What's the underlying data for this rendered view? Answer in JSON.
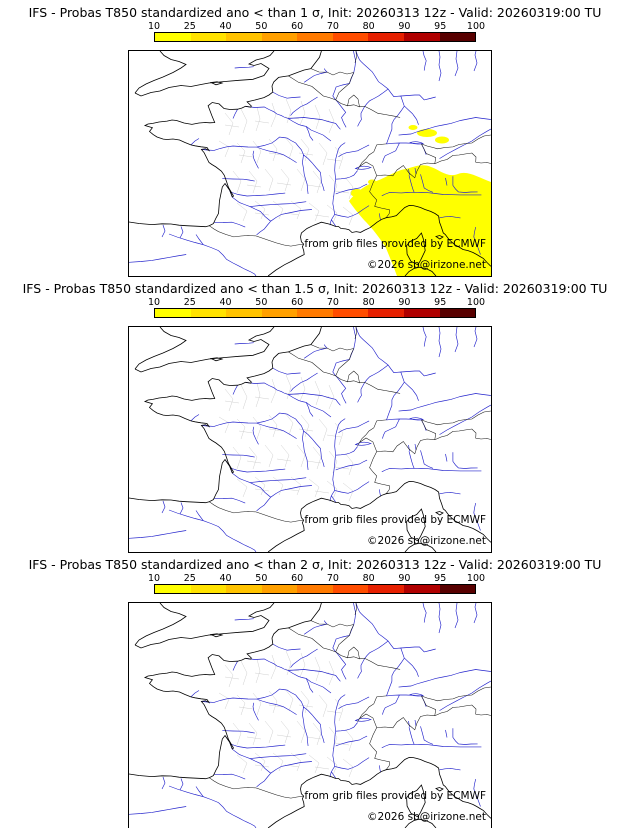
{
  "page": {
    "background": "#ffffff"
  },
  "colorbar": {
    "tick_labels": [
      "10",
      "25",
      "40",
      "50",
      "60",
      "70",
      "80",
      "90",
      "95",
      "100"
    ],
    "segment_colors": [
      "#ffff00",
      "#ffe200",
      "#ffc300",
      "#ffa000",
      "#ff7a00",
      "#ff4d00",
      "#e62000",
      "#b00000",
      "#580000"
    ],
    "border_color": "#000000"
  },
  "map_style": {
    "coast_color": "#000000",
    "country_border_color": "#1a1a1a",
    "river_color": "#2323cc",
    "department_boundary_color": "#c4c4c4",
    "probability_fill": "#ffff00",
    "sea_and_land": "#ffffff"
  },
  "panels": [
    {
      "title": "IFS - Probas T850  standardized ano < than 1 σ, Init: 20260313 12z - Valid: 20260319:00 TU",
      "attribution": "from grib files provided by ECMWF",
      "copyright": "©2026 sb@irizone.net",
      "probability_overlay": true
    },
    {
      "title": "IFS - Probas T850  standardized ano < than 1.5 σ, Init: 20260313 12z - Valid: 20260319:00 TU",
      "attribution": "from grib files provided by ECMWF",
      "copyright": "©2026 sb@irizone.net",
      "probability_overlay": false
    },
    {
      "title": "IFS - Probas T850  standardized ano < than 2 σ, Init: 20260313 12z - Valid: 20260319:00 TU",
      "attribution": "from grib files provided by ECMWF",
      "copyright": "©2026 sb@irizone.net",
      "probability_overlay": false
    }
  ]
}
